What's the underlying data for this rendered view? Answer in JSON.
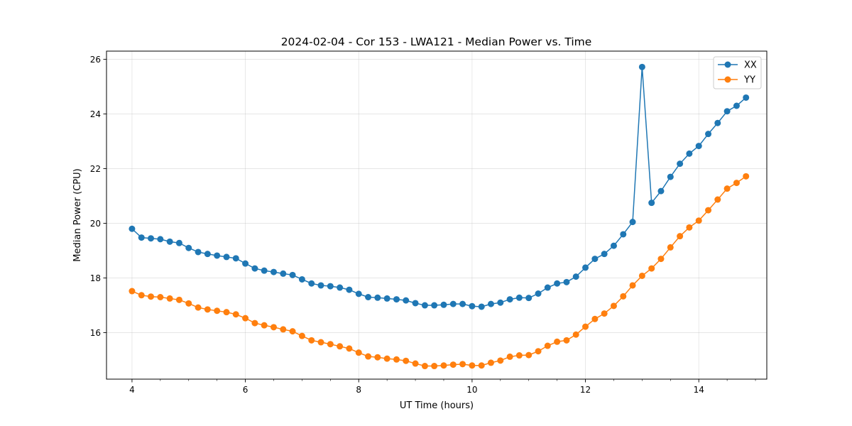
{
  "chart_data": {
    "type": "line",
    "title": "2024-02-04 - Cor 153 - LWA121 - Median Power vs. Time",
    "xlabel": "UT Time (hours)",
    "ylabel": "Median Power (CPU)",
    "xlim": [
      3.55,
      15.2
    ],
    "ylim": [
      14.3,
      26.3
    ],
    "xticks": [
      4,
      6,
      8,
      10,
      12,
      14
    ],
    "yticks": [
      16,
      18,
      20,
      22,
      24,
      26
    ],
    "grid": true,
    "legend_position": "top-right",
    "x": [
      4.0,
      4.167,
      4.333,
      4.5,
      4.667,
      4.833,
      5.0,
      5.167,
      5.333,
      5.5,
      5.667,
      5.833,
      6.0,
      6.167,
      6.333,
      6.5,
      6.667,
      6.833,
      7.0,
      7.167,
      7.333,
      7.5,
      7.667,
      7.833,
      8.0,
      8.167,
      8.333,
      8.5,
      8.667,
      8.833,
      9.0,
      9.167,
      9.333,
      9.5,
      9.667,
      9.833,
      10.0,
      10.167,
      10.333,
      10.5,
      10.667,
      10.833,
      11.0,
      11.167,
      11.333,
      11.5,
      11.667,
      11.833,
      12.0,
      12.167,
      12.333,
      12.5,
      12.667,
      12.833,
      13.0,
      13.167,
      13.333,
      13.5,
      13.667,
      13.833,
      14.0,
      14.167,
      14.333,
      14.5,
      14.667,
      14.833
    ],
    "series": [
      {
        "name": "XX",
        "color": "#1f77b4",
        "values": [
          19.8,
          19.48,
          19.45,
          19.42,
          19.33,
          19.28,
          19.1,
          18.95,
          18.88,
          18.82,
          18.77,
          18.72,
          18.53,
          18.35,
          18.27,
          18.22,
          18.16,
          18.11,
          17.95,
          17.8,
          17.73,
          17.7,
          17.65,
          17.57,
          17.42,
          17.3,
          17.28,
          17.25,
          17.22,
          17.18,
          17.08,
          17.0,
          17.0,
          17.02,
          17.05,
          17.05,
          16.97,
          16.95,
          17.05,
          17.1,
          17.22,
          17.28,
          17.27,
          17.43,
          17.65,
          17.8,
          17.85,
          18.05,
          18.38,
          18.7,
          18.88,
          19.18,
          19.6,
          20.05,
          25.72,
          20.75,
          21.18,
          21.7,
          22.18,
          22.55,
          22.83,
          23.27,
          23.67,
          24.1,
          24.3,
          24.6
        ]
      },
      {
        "name": "YY",
        "color": "#ff7f0e",
        "values": [
          17.52,
          17.37,
          17.32,
          17.3,
          17.25,
          17.2,
          17.07,
          16.92,
          16.85,
          16.8,
          16.75,
          16.67,
          16.53,
          16.35,
          16.27,
          16.2,
          16.12,
          16.05,
          15.88,
          15.72,
          15.65,
          15.58,
          15.5,
          15.42,
          15.27,
          15.13,
          15.1,
          15.05,
          15.02,
          14.97,
          14.87,
          14.78,
          14.78,
          14.8,
          14.83,
          14.85,
          14.8,
          14.8,
          14.9,
          14.98,
          15.12,
          15.17,
          15.18,
          15.32,
          15.52,
          15.67,
          15.72,
          15.93,
          16.22,
          16.5,
          16.7,
          16.98,
          17.33,
          17.73,
          18.08,
          18.35,
          18.7,
          19.12,
          19.53,
          19.85,
          20.1,
          20.48,
          20.87,
          21.27,
          21.48,
          21.72
        ]
      }
    ]
  }
}
